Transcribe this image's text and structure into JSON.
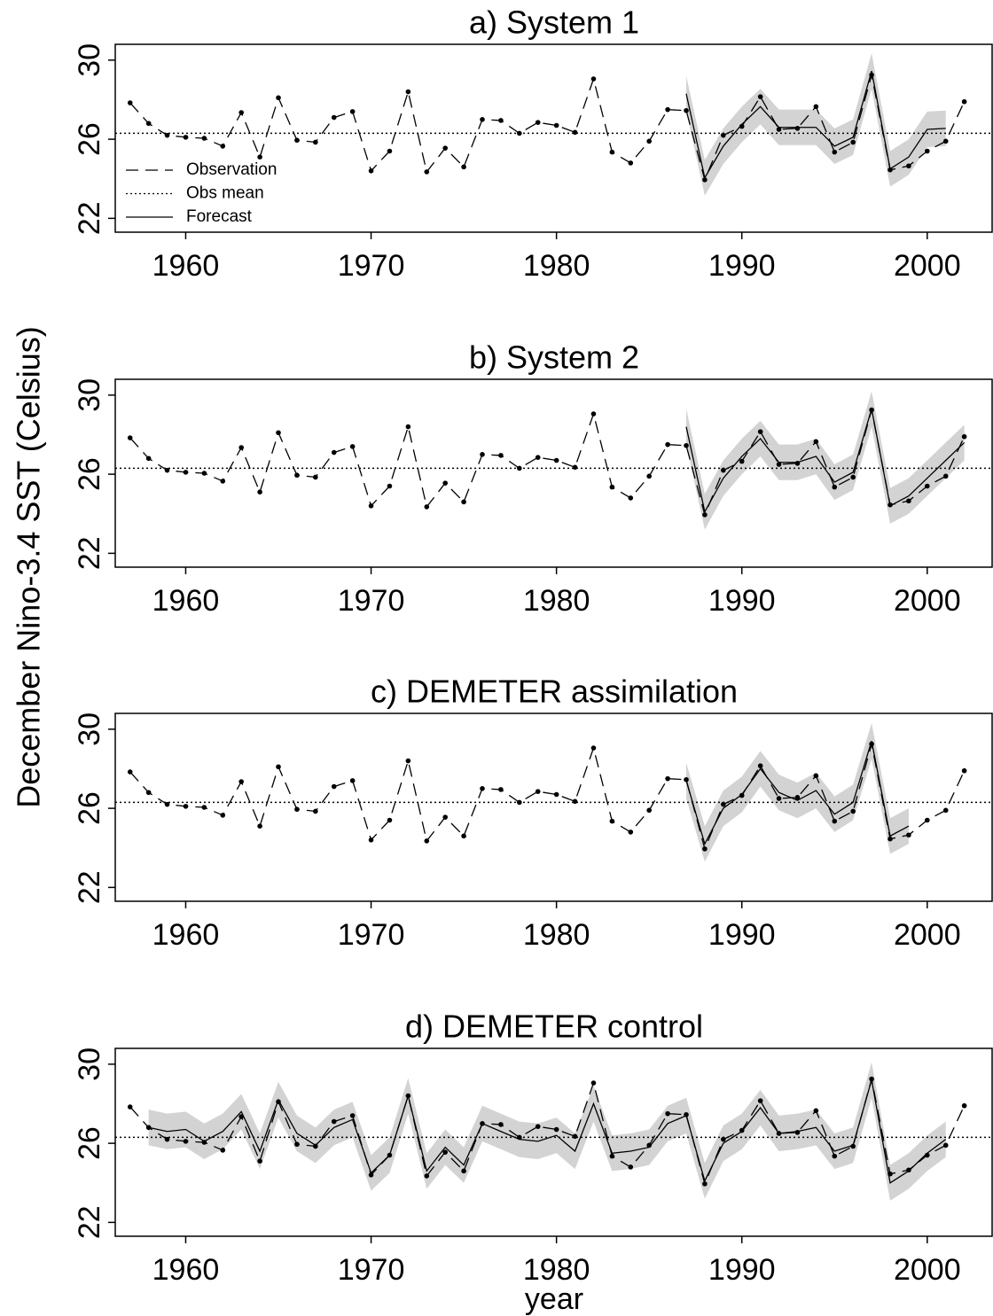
{
  "ylabel": "December Nino-3.4 SST (Celsius)",
  "xlabel": "year",
  "chart_data": [
    {
      "type": "line",
      "title": "a) System 1",
      "xlim": [
        1956.2,
        2003.5
      ],
      "ylim": [
        21.3,
        30.8
      ],
      "xticks": [
        1960,
        1970,
        1980,
        1990,
        2000
      ],
      "yticks": [
        22,
        26,
        30
      ],
      "legend": true,
      "obs_mean": {
        "name": "Obs mean",
        "value": 26.3
      },
      "spread": 0.9,
      "series": [
        {
          "name": "Observation",
          "x": [
            1957,
            1958,
            1959,
            1960,
            1961,
            1962,
            1963,
            1964,
            1965,
            1966,
            1967,
            1968,
            1969,
            1970,
            1971,
            1972,
            1973,
            1974,
            1975,
            1976,
            1977,
            1978,
            1979,
            1980,
            1981,
            1982,
            1983,
            1984,
            1985,
            1986,
            1987,
            1988,
            1989,
            1990,
            1991,
            1992,
            1993,
            1994,
            1995,
            1996,
            1997,
            1998,
            1999,
            2000,
            2001,
            2002
          ],
          "values": [
            27.84,
            26.8,
            26.2,
            26.1,
            26.05,
            25.65,
            27.35,
            25.1,
            28.1,
            25.95,
            25.85,
            27.1,
            27.4,
            24.4,
            25.4,
            28.4,
            24.35,
            25.55,
            24.6,
            27.0,
            26.95,
            26.3,
            26.85,
            26.7,
            26.35,
            29.05,
            25.35,
            24.8,
            25.9,
            27.5,
            27.45,
            23.95,
            26.2,
            26.65,
            28.15,
            26.5,
            26.55,
            27.65,
            25.35,
            25.85,
            29.25,
            24.45,
            24.65,
            25.4,
            25.9,
            27.9
          ]
        },
        {
          "name": "Forecast",
          "x": [
            1987,
            1988,
            1989,
            1990,
            1991,
            1992,
            1993,
            1994,
            1995,
            1996,
            1997,
            1998,
            1999,
            2000,
            2001
          ],
          "values": [
            28.3,
            24.05,
            25.65,
            26.75,
            27.65,
            26.6,
            26.6,
            26.6,
            25.65,
            26.1,
            29.45,
            24.5,
            25.1,
            26.5,
            26.55
          ]
        }
      ]
    },
    {
      "type": "line",
      "title": "b) System 2",
      "xlim": [
        1956.2,
        2003.5
      ],
      "ylim": [
        21.3,
        30.8
      ],
      "xticks": [
        1960,
        1970,
        1980,
        1990,
        2000
      ],
      "yticks": [
        22,
        26,
        30
      ],
      "legend": false,
      "obs_mean": {
        "value": 26.3
      },
      "spread": 0.9,
      "series": [
        {
          "x": [
            1957,
            1958,
            1959,
            1960,
            1961,
            1962,
            1963,
            1964,
            1965,
            1966,
            1967,
            1968,
            1969,
            1970,
            1971,
            1972,
            1973,
            1974,
            1975,
            1976,
            1977,
            1978,
            1979,
            1980,
            1981,
            1982,
            1983,
            1984,
            1985,
            1986,
            1987,
            1988,
            1989,
            1990,
            1991,
            1992,
            1993,
            1994,
            1995,
            1996,
            1997,
            1998,
            1999,
            2000,
            2001,
            2002
          ],
          "values": [
            27.84,
            26.8,
            26.2,
            26.1,
            26.05,
            25.65,
            27.35,
            25.1,
            28.1,
            25.95,
            25.85,
            27.1,
            27.4,
            24.4,
            25.4,
            28.4,
            24.35,
            25.55,
            24.6,
            27.0,
            26.95,
            26.3,
            26.85,
            26.7,
            26.35,
            29.05,
            25.35,
            24.8,
            25.9,
            27.5,
            27.45,
            23.95,
            26.2,
            26.65,
            28.15,
            26.5,
            26.55,
            27.65,
            25.35,
            25.85,
            29.25,
            24.45,
            24.65,
            25.4,
            25.9,
            27.9
          ]
        },
        {
          "x": [
            1987,
            1988,
            1989,
            1990,
            1991,
            1992,
            1993,
            1994,
            1995,
            1996,
            1997,
            1998,
            1999,
            2000,
            2001,
            2002
          ],
          "values": [
            28.4,
            24.1,
            25.8,
            26.9,
            27.8,
            26.6,
            26.6,
            26.9,
            25.6,
            26.1,
            29.3,
            24.4,
            24.9,
            25.8,
            26.7,
            27.6
          ]
        }
      ]
    },
    {
      "type": "line",
      "title": "c) DEMETER assimilation",
      "xlim": [
        1956.2,
        2003.5
      ],
      "ylim": [
        21.3,
        30.8
      ],
      "xticks": [
        1960,
        1970,
        1980,
        1990,
        2000
      ],
      "yticks": [
        22,
        26,
        30
      ],
      "legend": false,
      "obs_mean": {
        "value": 26.3
      },
      "spread": 0.9,
      "series": [
        {
          "x": [
            1957,
            1958,
            1959,
            1960,
            1961,
            1962,
            1963,
            1964,
            1965,
            1966,
            1967,
            1968,
            1969,
            1970,
            1971,
            1972,
            1973,
            1974,
            1975,
            1976,
            1977,
            1978,
            1979,
            1980,
            1981,
            1982,
            1983,
            1984,
            1985,
            1986,
            1987,
            1988,
            1989,
            1990,
            1991,
            1992,
            1993,
            1994,
            1995,
            1996,
            1997,
            1998,
            1999,
            2000,
            2001,
            2002
          ],
          "values": [
            27.84,
            26.8,
            26.2,
            26.1,
            26.05,
            25.65,
            27.35,
            25.1,
            28.1,
            25.95,
            25.85,
            27.1,
            27.4,
            24.4,
            25.4,
            28.4,
            24.35,
            25.55,
            24.6,
            27.0,
            26.95,
            26.3,
            26.85,
            26.7,
            26.35,
            29.05,
            25.35,
            24.8,
            25.9,
            27.5,
            27.45,
            23.95,
            26.2,
            26.65,
            28.15,
            26.5,
            26.55,
            27.65,
            25.35,
            25.85,
            29.25,
            24.45,
            24.65,
            25.4,
            25.9,
            27.9
          ]
        },
        {
          "x": [
            1987,
            1988,
            1989,
            1990,
            1991,
            1992,
            1993,
            1994,
            1995,
            1996,
            1997,
            1998,
            1999
          ],
          "values": [
            27.4,
            24.2,
            26.0,
            26.7,
            28.0,
            26.8,
            26.4,
            26.9,
            25.7,
            26.3,
            29.4,
            24.6,
            25.1
          ]
        }
      ]
    },
    {
      "type": "line",
      "title": "d) DEMETER control",
      "xlim": [
        1956.2,
        2003.5
      ],
      "ylim": [
        21.3,
        30.8
      ],
      "xticks": [
        1960,
        1970,
        1980,
        1990,
        2000
      ],
      "yticks": [
        22,
        26,
        30
      ],
      "legend": false,
      "obs_mean": {
        "value": 26.3
      },
      "spread": 0.9,
      "series": [
        {
          "x": [
            1957,
            1958,
            1959,
            1960,
            1961,
            1962,
            1963,
            1964,
            1965,
            1966,
            1967,
            1968,
            1969,
            1970,
            1971,
            1972,
            1973,
            1974,
            1975,
            1976,
            1977,
            1978,
            1979,
            1980,
            1981,
            1982,
            1983,
            1984,
            1985,
            1986,
            1987,
            1988,
            1989,
            1990,
            1991,
            1992,
            1993,
            1994,
            1995,
            1996,
            1997,
            1998,
            1999,
            2000,
            2001,
            2002
          ],
          "values": [
            27.84,
            26.8,
            26.2,
            26.1,
            26.05,
            25.65,
            27.35,
            25.1,
            28.1,
            25.95,
            25.85,
            27.1,
            27.4,
            24.4,
            25.4,
            28.4,
            24.35,
            25.55,
            24.6,
            27.0,
            26.95,
            26.3,
            26.85,
            26.7,
            26.35,
            29.05,
            25.35,
            24.8,
            25.9,
            27.5,
            27.45,
            23.95,
            26.2,
            26.65,
            28.15,
            26.5,
            26.55,
            27.65,
            25.35,
            25.85,
            29.25,
            24.45,
            24.65,
            25.4,
            25.9,
            27.9
          ]
        },
        {
          "x": [
            1958,
            1959,
            1960,
            1961,
            1962,
            1963,
            1964,
            1965,
            1966,
            1967,
            1968,
            1969,
            1970,
            1971,
            1972,
            1973,
            1974,
            1975,
            1976,
            1977,
            1978,
            1979,
            1980,
            1981,
            1982,
            1983,
            1984,
            1985,
            1986,
            1987,
            1988,
            1989,
            1990,
            1991,
            1992,
            1993,
            1994,
            1995,
            1996,
            1997,
            1998,
            1999,
            2000,
            2001
          ],
          "values": [
            26.8,
            26.6,
            26.7,
            26.1,
            26.6,
            27.6,
            25.6,
            28.2,
            26.5,
            25.9,
            26.8,
            27.2,
            24.5,
            25.4,
            28.4,
            24.6,
            25.8,
            24.9,
            27.0,
            26.6,
            26.2,
            26.1,
            26.4,
            25.6,
            28.0,
            25.5,
            25.6,
            25.8,
            27.0,
            27.4,
            24.1,
            26.0,
            26.6,
            27.8,
            26.5,
            26.6,
            26.8,
            25.6,
            25.9,
            29.2,
            24.0,
            24.6,
            25.5,
            26.2
          ]
        }
      ]
    }
  ]
}
